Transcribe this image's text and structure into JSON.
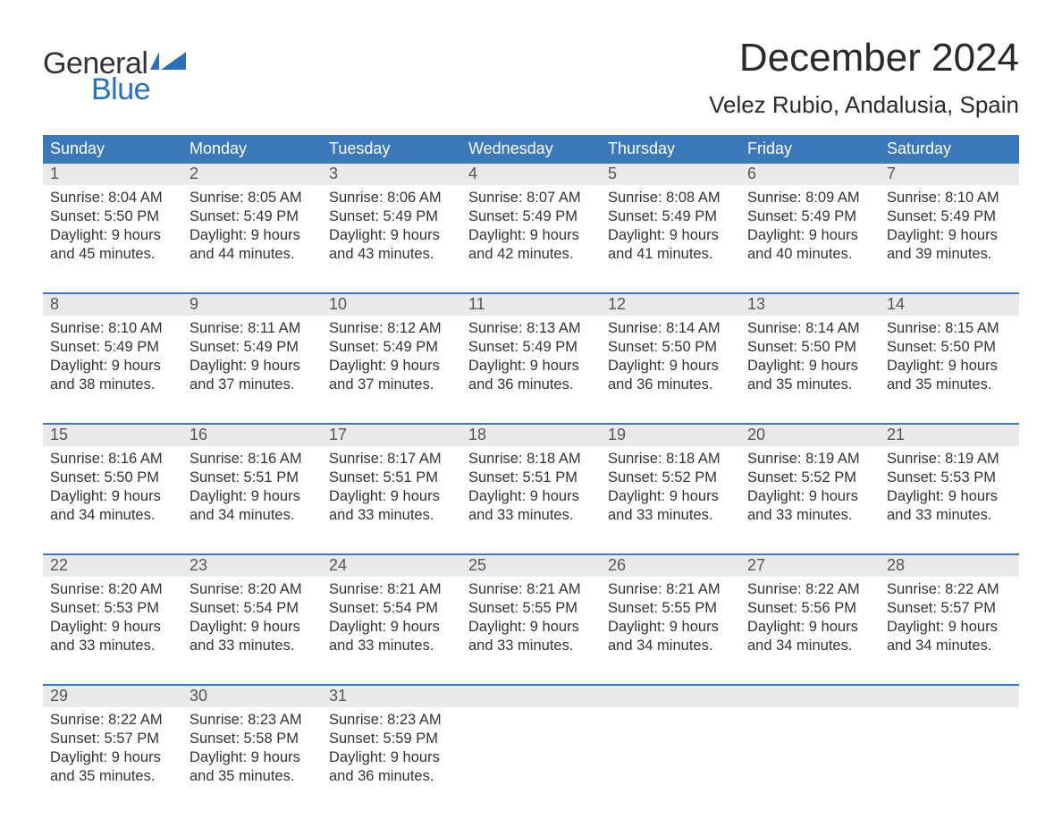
{
  "logo": {
    "general": "General",
    "blue": "Blue",
    "text_color_dark": "#333333",
    "text_color_blue": "#2d6fb6",
    "flag_color": "#2d6fb6"
  },
  "title": "December 2024",
  "location": "Velez Rubio, Andalusia, Spain",
  "colors": {
    "header_bg": "#3a78b9",
    "header_text": "#ffffff",
    "daynum_bg": "#e9e9e9",
    "daynum_text": "#555555",
    "body_text": "#333333",
    "week_border": "#3a78b9",
    "page_bg": "#ffffff"
  },
  "typography": {
    "title_fontsize": 44,
    "location_fontsize": 26,
    "dow_fontsize": 18,
    "daynum_fontsize": 18,
    "cell_fontsize": 16.5
  },
  "days_of_week": [
    "Sunday",
    "Monday",
    "Tuesday",
    "Wednesday",
    "Thursday",
    "Friday",
    "Saturday"
  ],
  "weeks": [
    {
      "days": [
        {
          "num": "1",
          "sunrise": "Sunrise: 8:04 AM",
          "sunset": "Sunset: 5:50 PM",
          "dl1": "Daylight: 9 hours",
          "dl2": "and 45 minutes."
        },
        {
          "num": "2",
          "sunrise": "Sunrise: 8:05 AM",
          "sunset": "Sunset: 5:49 PM",
          "dl1": "Daylight: 9 hours",
          "dl2": "and 44 minutes."
        },
        {
          "num": "3",
          "sunrise": "Sunrise: 8:06 AM",
          "sunset": "Sunset: 5:49 PM",
          "dl1": "Daylight: 9 hours",
          "dl2": "and 43 minutes."
        },
        {
          "num": "4",
          "sunrise": "Sunrise: 8:07 AM",
          "sunset": "Sunset: 5:49 PM",
          "dl1": "Daylight: 9 hours",
          "dl2": "and 42 minutes."
        },
        {
          "num": "5",
          "sunrise": "Sunrise: 8:08 AM",
          "sunset": "Sunset: 5:49 PM",
          "dl1": "Daylight: 9 hours",
          "dl2": "and 41 minutes."
        },
        {
          "num": "6",
          "sunrise": "Sunrise: 8:09 AM",
          "sunset": "Sunset: 5:49 PM",
          "dl1": "Daylight: 9 hours",
          "dl2": "and 40 minutes."
        },
        {
          "num": "7",
          "sunrise": "Sunrise: 8:10 AM",
          "sunset": "Sunset: 5:49 PM",
          "dl1": "Daylight: 9 hours",
          "dl2": "and 39 minutes."
        }
      ]
    },
    {
      "days": [
        {
          "num": "8",
          "sunrise": "Sunrise: 8:10 AM",
          "sunset": "Sunset: 5:49 PM",
          "dl1": "Daylight: 9 hours",
          "dl2": "and 38 minutes."
        },
        {
          "num": "9",
          "sunrise": "Sunrise: 8:11 AM",
          "sunset": "Sunset: 5:49 PM",
          "dl1": "Daylight: 9 hours",
          "dl2": "and 37 minutes."
        },
        {
          "num": "10",
          "sunrise": "Sunrise: 8:12 AM",
          "sunset": "Sunset: 5:49 PM",
          "dl1": "Daylight: 9 hours",
          "dl2": "and 37 minutes."
        },
        {
          "num": "11",
          "sunrise": "Sunrise: 8:13 AM",
          "sunset": "Sunset: 5:49 PM",
          "dl1": "Daylight: 9 hours",
          "dl2": "and 36 minutes."
        },
        {
          "num": "12",
          "sunrise": "Sunrise: 8:14 AM",
          "sunset": "Sunset: 5:50 PM",
          "dl1": "Daylight: 9 hours",
          "dl2": "and 36 minutes."
        },
        {
          "num": "13",
          "sunrise": "Sunrise: 8:14 AM",
          "sunset": "Sunset: 5:50 PM",
          "dl1": "Daylight: 9 hours",
          "dl2": "and 35 minutes."
        },
        {
          "num": "14",
          "sunrise": "Sunrise: 8:15 AM",
          "sunset": "Sunset: 5:50 PM",
          "dl1": "Daylight: 9 hours",
          "dl2": "and 35 minutes."
        }
      ]
    },
    {
      "days": [
        {
          "num": "15",
          "sunrise": "Sunrise: 8:16 AM",
          "sunset": "Sunset: 5:50 PM",
          "dl1": "Daylight: 9 hours",
          "dl2": "and 34 minutes."
        },
        {
          "num": "16",
          "sunrise": "Sunrise: 8:16 AM",
          "sunset": "Sunset: 5:51 PM",
          "dl1": "Daylight: 9 hours",
          "dl2": "and 34 minutes."
        },
        {
          "num": "17",
          "sunrise": "Sunrise: 8:17 AM",
          "sunset": "Sunset: 5:51 PM",
          "dl1": "Daylight: 9 hours",
          "dl2": "and 33 minutes."
        },
        {
          "num": "18",
          "sunrise": "Sunrise: 8:18 AM",
          "sunset": "Sunset: 5:51 PM",
          "dl1": "Daylight: 9 hours",
          "dl2": "and 33 minutes."
        },
        {
          "num": "19",
          "sunrise": "Sunrise: 8:18 AM",
          "sunset": "Sunset: 5:52 PM",
          "dl1": "Daylight: 9 hours",
          "dl2": "and 33 minutes."
        },
        {
          "num": "20",
          "sunrise": "Sunrise: 8:19 AM",
          "sunset": "Sunset: 5:52 PM",
          "dl1": "Daylight: 9 hours",
          "dl2": "and 33 minutes."
        },
        {
          "num": "21",
          "sunrise": "Sunrise: 8:19 AM",
          "sunset": "Sunset: 5:53 PM",
          "dl1": "Daylight: 9 hours",
          "dl2": "and 33 minutes."
        }
      ]
    },
    {
      "days": [
        {
          "num": "22",
          "sunrise": "Sunrise: 8:20 AM",
          "sunset": "Sunset: 5:53 PM",
          "dl1": "Daylight: 9 hours",
          "dl2": "and 33 minutes."
        },
        {
          "num": "23",
          "sunrise": "Sunrise: 8:20 AM",
          "sunset": "Sunset: 5:54 PM",
          "dl1": "Daylight: 9 hours",
          "dl2": "and 33 minutes."
        },
        {
          "num": "24",
          "sunrise": "Sunrise: 8:21 AM",
          "sunset": "Sunset: 5:54 PM",
          "dl1": "Daylight: 9 hours",
          "dl2": "and 33 minutes."
        },
        {
          "num": "25",
          "sunrise": "Sunrise: 8:21 AM",
          "sunset": "Sunset: 5:55 PM",
          "dl1": "Daylight: 9 hours",
          "dl2": "and 33 minutes."
        },
        {
          "num": "26",
          "sunrise": "Sunrise: 8:21 AM",
          "sunset": "Sunset: 5:55 PM",
          "dl1": "Daylight: 9 hours",
          "dl2": "and 34 minutes."
        },
        {
          "num": "27",
          "sunrise": "Sunrise: 8:22 AM",
          "sunset": "Sunset: 5:56 PM",
          "dl1": "Daylight: 9 hours",
          "dl2": "and 34 minutes."
        },
        {
          "num": "28",
          "sunrise": "Sunrise: 8:22 AM",
          "sunset": "Sunset: 5:57 PM",
          "dl1": "Daylight: 9 hours",
          "dl2": "and 34 minutes."
        }
      ]
    },
    {
      "days": [
        {
          "num": "29",
          "sunrise": "Sunrise: 8:22 AM",
          "sunset": "Sunset: 5:57 PM",
          "dl1": "Daylight: 9 hours",
          "dl2": "and 35 minutes."
        },
        {
          "num": "30",
          "sunrise": "Sunrise: 8:23 AM",
          "sunset": "Sunset: 5:58 PM",
          "dl1": "Daylight: 9 hours",
          "dl2": "and 35 minutes."
        },
        {
          "num": "31",
          "sunrise": "Sunrise: 8:23 AM",
          "sunset": "Sunset: 5:59 PM",
          "dl1": "Daylight: 9 hours",
          "dl2": "and 36 minutes."
        },
        {
          "num": "",
          "sunrise": "",
          "sunset": "",
          "dl1": "",
          "dl2": ""
        },
        {
          "num": "",
          "sunrise": "",
          "sunset": "",
          "dl1": "",
          "dl2": ""
        },
        {
          "num": "",
          "sunrise": "",
          "sunset": "",
          "dl1": "",
          "dl2": ""
        },
        {
          "num": "",
          "sunrise": "",
          "sunset": "",
          "dl1": "",
          "dl2": ""
        }
      ]
    }
  ]
}
